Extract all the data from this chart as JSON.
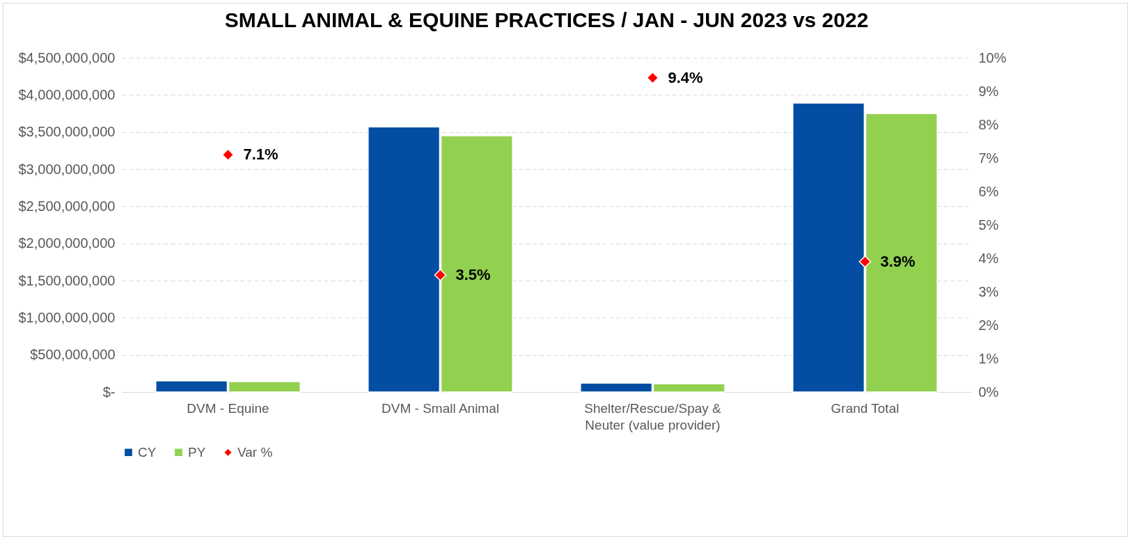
{
  "chart_data": {
    "type": "bar",
    "title": "SMALL ANIMAL & EQUINE PRACTICES / JAN - JUN 2023 vs 2022",
    "categories": [
      "DVM - Equine",
      "DVM - Small Animal",
      "Shelter/Rescue/Spay & Neuter (value provider)",
      "Grand Total"
    ],
    "series": [
      {
        "name": "CY",
        "color": "#034ea2",
        "values": [
          150000000,
          3570000000,
          120000000,
          3890000000
        ]
      },
      {
        "name": "PY",
        "color": "#92d050",
        "values": [
          140000000,
          3450000000,
          110000000,
          3750000000
        ]
      },
      {
        "name": "Var %",
        "type": "scatter",
        "axis": "y2",
        "color": "#ff0000",
        "marker": "diamond",
        "values": [
          7.1,
          3.5,
          9.4,
          3.9
        ],
        "value_labels": [
          "7.1%",
          "3.5%",
          "9.4%",
          "3.9%"
        ]
      }
    ],
    "ylim": [
      0,
      4500000000
    ],
    "yticks": [
      {
        "value": 0,
        "label": "$-"
      },
      {
        "value": 500000000,
        "label": "$500,000,000"
      },
      {
        "value": 1000000000,
        "label": "$1,000,000,000"
      },
      {
        "value": 1500000000,
        "label": "$1,500,000,000"
      },
      {
        "value": 2000000000,
        "label": "$2,000,000,000"
      },
      {
        "value": 2500000000,
        "label": "$2,500,000,000"
      },
      {
        "value": 3000000000,
        "label": "$3,000,000,000"
      },
      {
        "value": 3500000000,
        "label": "$3,500,000,000"
      },
      {
        "value": 4000000000,
        "label": "$4,000,000,000"
      },
      {
        "value": 4500000000,
        "label": "$4,500,000,000"
      }
    ],
    "y2lim": [
      0,
      10
    ],
    "y2ticks": [
      {
        "value": 0,
        "label": "0%"
      },
      {
        "value": 1,
        "label": "1%"
      },
      {
        "value": 2,
        "label": "2%"
      },
      {
        "value": 3,
        "label": "3%"
      },
      {
        "value": 4,
        "label": "4%"
      },
      {
        "value": 5,
        "label": "5%"
      },
      {
        "value": 6,
        "label": "6%"
      },
      {
        "value": 7,
        "label": "7%"
      },
      {
        "value": 8,
        "label": "8%"
      },
      {
        "value": 9,
        "label": "9%"
      },
      {
        "value": 10,
        "label": "10%"
      }
    ],
    "grid": "y",
    "legend": "bottom"
  }
}
